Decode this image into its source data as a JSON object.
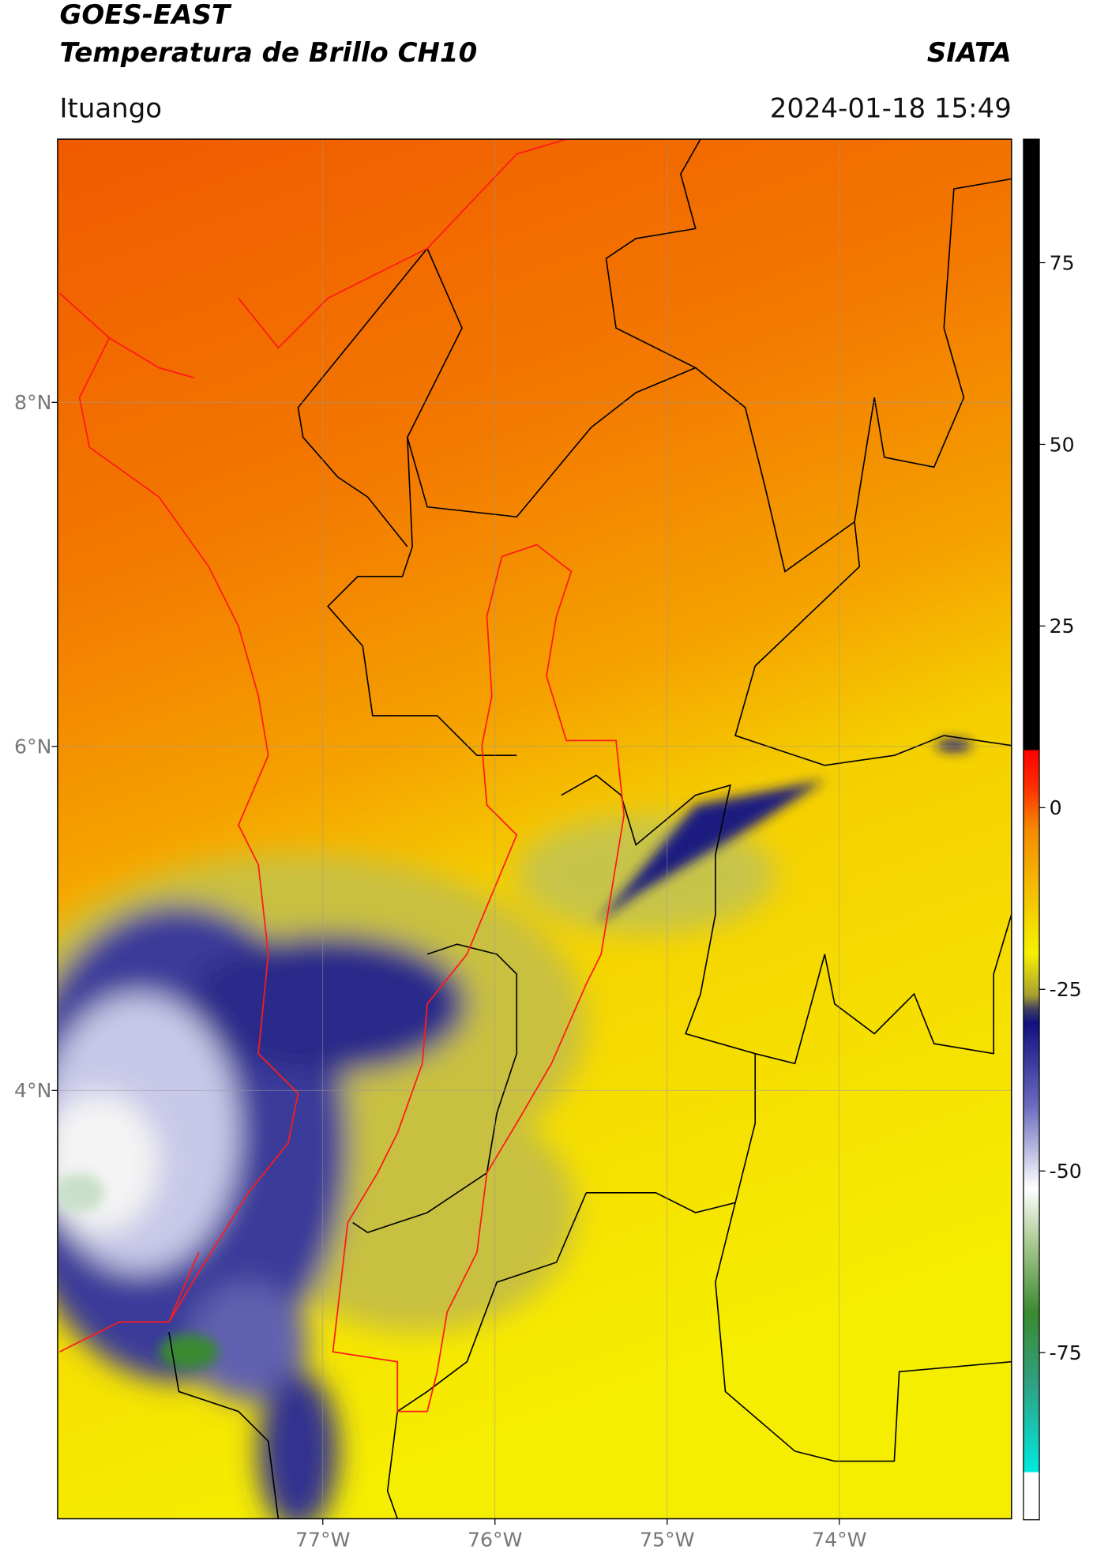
{
  "chart_data": {
    "type": "map",
    "title": "GOES-EAST",
    "subtitle": "Temperatura de Brillo CH10",
    "source": "SIATA",
    "location": "Ituango",
    "datetime": "2024-01-18 15:49",
    "xlim": [
      -78.54,
      -73.0
    ],
    "ylim": [
      1.51,
      9.53
    ],
    "xticks": [
      {
        "value": -77,
        "label": "77°W"
      },
      {
        "value": -76,
        "label": "76°W"
      },
      {
        "value": -75,
        "label": "75°W"
      },
      {
        "value": -74,
        "label": "74°W"
      }
    ],
    "yticks": [
      {
        "value": 8,
        "label": "8°N"
      },
      {
        "value": 6,
        "label": "6°N"
      },
      {
        "value": 4,
        "label": "4°N"
      }
    ],
    "grid": true,
    "colorbar": {
      "lim": [
        -98,
        92
      ],
      "ticks": [
        75,
        50,
        25,
        0,
        -25,
        -50,
        -75
      ]
    }
  }
}
